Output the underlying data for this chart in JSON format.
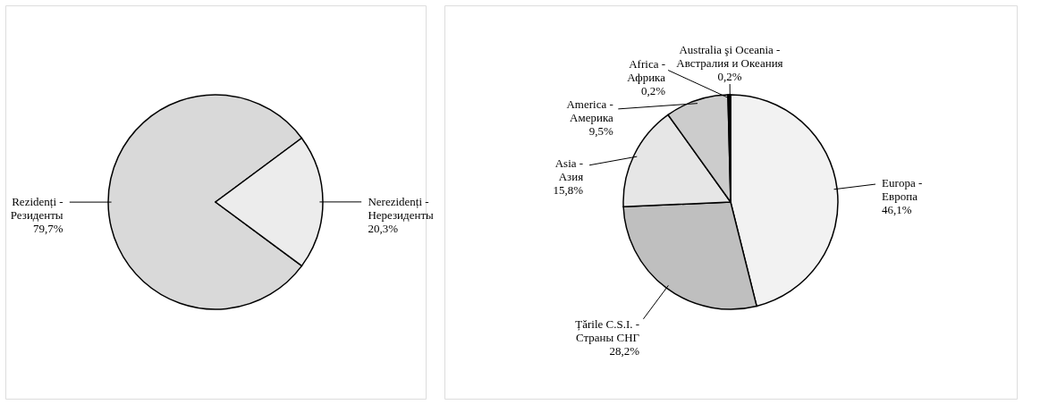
{
  "chart_data": [
    {
      "type": "pie",
      "categories": [
        "Rezidenți - Резиденты",
        "Nerezidenți - Нерезиденты"
      ],
      "values": [
        79.7,
        20.3
      ],
      "value_labels": [
        "79,7%",
        "20,3%"
      ],
      "colors": [
        "#d9d9d9",
        "#ececec"
      ]
    },
    {
      "type": "pie",
      "categories": [
        "Europa - Европа",
        "Țările C.S.I. - Страны СНГ",
        "Asia - Азия",
        "America - Америка",
        "Africa - Африка",
        "Australia şi Oceania - Австралия и Океания"
      ],
      "values": [
        46.1,
        28.2,
        15.8,
        9.5,
        0.2,
        0.2
      ],
      "value_labels": [
        "46,1%",
        "28,2%",
        "15,8%",
        "9,5%",
        "0,2%",
        "0,2%"
      ],
      "colors": [
        "#f2f2f2",
        "#bfbfbf",
        "#e6e6e6",
        "#cccccc",
        "#999999",
        "#000000"
      ]
    }
  ]
}
